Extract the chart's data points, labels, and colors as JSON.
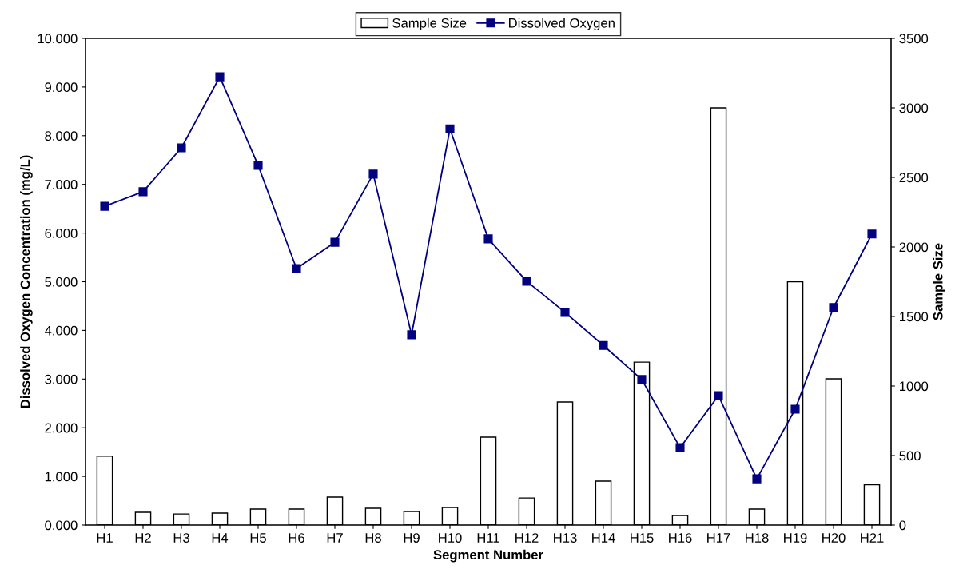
{
  "chart_data": {
    "type": "bar",
    "xlabel": "Segment Number",
    "ylabel": "Dissolved Oxygen Concentration (mg/L)",
    "y2label": "Sample Size",
    "categories": [
      "H1",
      "H2",
      "H3",
      "H4",
      "H5",
      "H6",
      "H7",
      "H8",
      "H9",
      "H10",
      "H11",
      "H12",
      "H13",
      "H14",
      "H15",
      "H16",
      "H17",
      "H18",
      "H19",
      "H20",
      "H21"
    ],
    "series": [
      {
        "name": "Sample Size",
        "axis": "y2",
        "color": "#ffffff",
        "values": [
          495,
          92,
          80,
          86,
          115,
          115,
          201,
          121,
          98,
          126,
          632,
          195,
          885,
          316,
          1172,
          69,
          3000,
          115,
          1750,
          1052,
          290
        ]
      },
      {
        "name": "Dissolved Oxygen",
        "type": "line",
        "color": "#000080",
        "marker": "square",
        "line_style": "solid",
        "values": [
          6.55,
          6.85,
          7.75,
          9.21,
          7.39,
          5.27,
          5.81,
          7.21,
          3.91,
          8.14,
          5.88,
          5.01,
          4.37,
          3.69,
          2.99,
          1.59,
          2.66,
          0.95,
          2.38,
          4.47,
          5.98
        ]
      }
    ],
    "ylim": [
      0,
      10
    ],
    "yticks": [
      {
        "value": 0,
        "label": "0.000"
      },
      {
        "value": 1,
        "label": "1.000"
      },
      {
        "value": 2,
        "label": "2.000"
      },
      {
        "value": 3,
        "label": "3.000"
      },
      {
        "value": 4,
        "label": "4.000"
      },
      {
        "value": 5,
        "label": "5.000"
      },
      {
        "value": 6,
        "label": "6.000"
      },
      {
        "value": 7,
        "label": "7.000"
      },
      {
        "value": 8,
        "label": "8.000"
      },
      {
        "value": 9,
        "label": "9.000"
      },
      {
        "value": 10,
        "label": "10.000"
      }
    ],
    "y2lim": [
      0,
      3500
    ],
    "y2ticks": [
      0,
      500,
      1000,
      1500,
      2000,
      2500,
      3000,
      3500
    ],
    "grid": false,
    "legend": "top"
  }
}
